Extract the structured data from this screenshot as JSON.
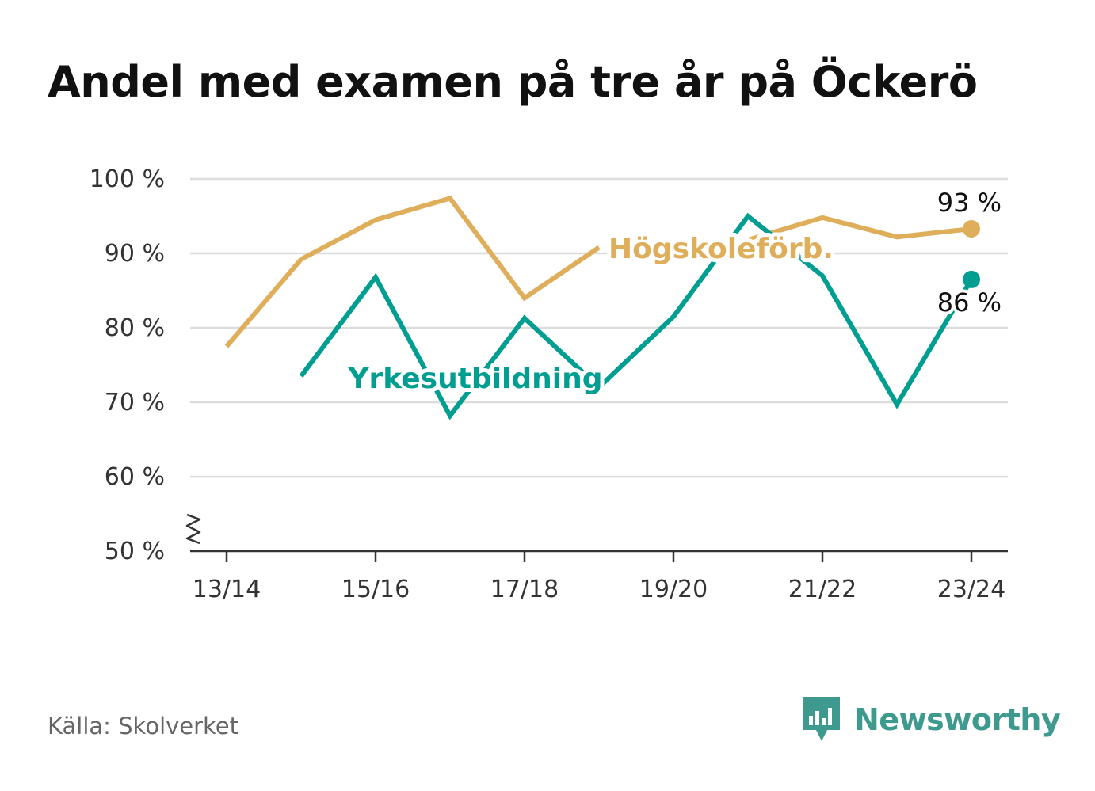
{
  "title": "Andel med examen på tre år på Öckerö",
  "source": "Källa: Skolverket",
  "brand": {
    "name": "Newsworthy",
    "icon": "bar-chart-speech-icon",
    "color": "#3e9a8e"
  },
  "chart_data": {
    "type": "line",
    "x": [
      "13/14",
      "14/15",
      "15/16",
      "16/17",
      "17/18",
      "18/19",
      "19/20",
      "20/21",
      "21/22",
      "22/23",
      "23/24"
    ],
    "x_tick_labels": [
      "13/14",
      "15/16",
      "17/18",
      "19/20",
      "21/22",
      "23/24"
    ],
    "y_tick_labels": [
      "100 %",
      "90 %",
      "80 %",
      "70 %",
      "60 %",
      "50 %"
    ],
    "ylim": [
      50,
      100
    ],
    "y_axis_break": true,
    "grid": true,
    "series": [
      {
        "name": "Högskoleförb.",
        "color": "#deae5a",
        "values": [
          77.5,
          89.2,
          94.5,
          97.4,
          84.0,
          90.8,
          null,
          91.8,
          94.8,
          92.2,
          93.3
        ],
        "end_label": "93 %"
      },
      {
        "name": "Yrkesutbildning",
        "color": "#009e90",
        "values": [
          null,
          73.5,
          86.8,
          68.2,
          81.3,
          72.0,
          81.5,
          95.0,
          87.0,
          69.7,
          86.5
        ],
        "end_label": "86 %"
      }
    ]
  }
}
